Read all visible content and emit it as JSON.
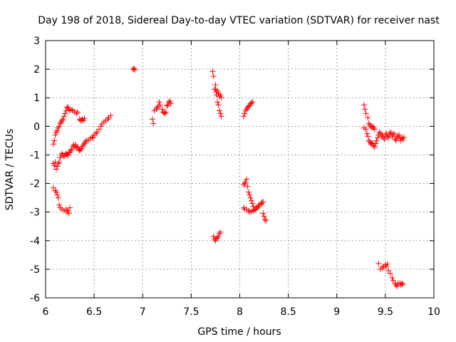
{
  "chart_data": {
    "type": "scatter",
    "title": "Day 198 of 2018, Sidereal Day-to-day VTEC variation (SDTVAR) for receiver nast",
    "xlabel": "GPS time / hours",
    "ylabel": "SDTVAR / TECUs",
    "xlim": [
      6,
      10
    ],
    "ylim": [
      -6,
      3
    ],
    "xticks": [
      "6",
      "6.5",
      "7",
      "7.5",
      "8",
      "8.5",
      "9",
      "9.5",
      "10"
    ],
    "yticks": [
      "-6",
      "-5",
      "-4",
      "-3",
      "-2",
      "-1",
      "0",
      "1",
      "2",
      "3"
    ],
    "grid": true,
    "marker": "+",
    "colors": {
      "marker": "#ff0000",
      "grid": "#a0a0a0",
      "axis": "#000000"
    },
    "series": [
      {
        "name": "SDTVAR",
        "points": [
          [
            6.08,
            -0.62
          ],
          [
            6.09,
            -0.5
          ],
          [
            6.1,
            -0.3
          ],
          [
            6.11,
            -0.2
          ],
          [
            6.12,
            -0.15
          ],
          [
            6.13,
            -0.05
          ],
          [
            6.14,
            0.0
          ],
          [
            6.15,
            0.1
          ],
          [
            6.16,
            0.15
          ],
          [
            6.17,
            0.2
          ],
          [
            6.18,
            0.25
          ],
          [
            6.19,
            0.35
          ],
          [
            6.2,
            0.45
          ],
          [
            6.21,
            0.55
          ],
          [
            6.22,
            0.65
          ],
          [
            6.23,
            0.68
          ],
          [
            6.24,
            0.6
          ],
          [
            6.25,
            0.55
          ],
          [
            6.27,
            0.58
          ],
          [
            6.28,
            0.55
          ],
          [
            6.3,
            0.5
          ],
          [
            6.32,
            0.45
          ],
          [
            6.33,
            0.5
          ],
          [
            6.35,
            0.25
          ],
          [
            6.36,
            0.2
          ],
          [
            6.37,
            0.22
          ],
          [
            6.38,
            0.25
          ],
          [
            6.39,
            0.2
          ],
          [
            6.4,
            0.28
          ],
          [
            6.08,
            -1.3
          ],
          [
            6.09,
            -1.38
          ],
          [
            6.1,
            -1.25
          ],
          [
            6.11,
            -1.5
          ],
          [
            6.12,
            -1.4
          ],
          [
            6.13,
            -1.3
          ],
          [
            6.14,
            -1.25
          ],
          [
            6.15,
            -1.1
          ],
          [
            6.16,
            -1.0
          ],
          [
            6.17,
            -0.95
          ],
          [
            6.18,
            -1.0
          ],
          [
            6.19,
            -1.05
          ],
          [
            6.2,
            -1.0
          ],
          [
            6.21,
            -0.95
          ],
          [
            6.22,
            -0.98
          ],
          [
            6.23,
            -1.02
          ],
          [
            6.24,
            -0.92
          ],
          [
            6.25,
            -0.9
          ],
          [
            6.26,
            -0.85
          ],
          [
            6.27,
            -0.8
          ],
          [
            6.28,
            -0.7
          ],
          [
            6.29,
            -0.65
          ],
          [
            6.3,
            -0.7
          ],
          [
            6.31,
            -0.65
          ],
          [
            6.32,
            -0.75
          ],
          [
            6.33,
            -0.72
          ],
          [
            6.34,
            -0.8
          ],
          [
            6.35,
            -0.85
          ],
          [
            6.36,
            -0.82
          ],
          [
            6.37,
            -0.78
          ],
          [
            6.38,
            -0.7
          ],
          [
            6.39,
            -0.65
          ],
          [
            6.4,
            -0.6
          ],
          [
            6.41,
            -0.55
          ],
          [
            6.42,
            -0.5
          ],
          [
            6.44,
            -0.48
          ],
          [
            6.46,
            -0.42
          ],
          [
            6.48,
            -0.38
          ],
          [
            6.49,
            -0.4
          ],
          [
            6.5,
            -0.3
          ],
          [
            6.52,
            -0.25
          ],
          [
            6.53,
            -0.2
          ],
          [
            6.55,
            -0.1
          ],
          [
            6.57,
            0.0
          ],
          [
            6.58,
            0.08
          ],
          [
            6.6,
            0.15
          ],
          [
            6.62,
            0.2
          ],
          [
            6.64,
            0.25
          ],
          [
            6.65,
            0.3
          ],
          [
            6.67,
            0.38
          ],
          [
            6.08,
            -2.15
          ],
          [
            6.1,
            -2.25
          ],
          [
            6.11,
            -2.3
          ],
          [
            6.12,
            -2.4
          ],
          [
            6.13,
            -2.5
          ],
          [
            6.14,
            -2.75
          ],
          [
            6.15,
            -2.85
          ],
          [
            6.17,
            -2.9
          ],
          [
            6.19,
            -2.95
          ],
          [
            6.21,
            -2.9
          ],
          [
            6.22,
            -3.0
          ],
          [
            6.23,
            -2.95
          ],
          [
            6.24,
            -3.05
          ],
          [
            6.25,
            -2.85
          ],
          [
            6.9,
            2.0
          ],
          [
            6.91,
            2.02
          ],
          [
            6.92,
            1.98
          ],
          [
            7.1,
            0.25
          ],
          [
            7.11,
            0.1
          ],
          [
            7.12,
            0.55
          ],
          [
            7.14,
            0.6
          ],
          [
            7.15,
            0.65
          ],
          [
            7.16,
            0.7
          ],
          [
            7.17,
            0.85
          ],
          [
            7.18,
            0.75
          ],
          [
            7.2,
            0.6
          ],
          [
            7.21,
            0.5
          ],
          [
            7.22,
            0.48
          ],
          [
            7.23,
            0.45
          ],
          [
            7.24,
            0.5
          ],
          [
            7.25,
            0.72
          ],
          [
            7.26,
            0.75
          ],
          [
            7.27,
            0.85
          ],
          [
            7.28,
            0.88
          ],
          [
            7.29,
            0.8
          ],
          [
            7.72,
            1.92
          ],
          [
            7.73,
            1.75
          ],
          [
            7.74,
            1.3
          ],
          [
            7.75,
            1.45
          ],
          [
            7.76,
            1.2
          ],
          [
            7.77,
            1.25
          ],
          [
            7.78,
            1.15
          ],
          [
            7.79,
            1.05
          ],
          [
            7.8,
            1.1
          ],
          [
            7.81,
            1.0
          ],
          [
            7.75,
            1.3
          ],
          [
            7.76,
            1.1
          ],
          [
            7.77,
            0.85
          ],
          [
            7.78,
            0.75
          ],
          [
            7.79,
            0.55
          ],
          [
            7.8,
            0.45
          ],
          [
            7.81,
            0.35
          ],
          [
            7.73,
            -3.85
          ],
          [
            7.74,
            -3.95
          ],
          [
            7.75,
            -4.0
          ],
          [
            7.76,
            -3.92
          ],
          [
            7.77,
            -3.9
          ],
          [
            7.78,
            -3.85
          ],
          [
            7.79,
            -3.75
          ],
          [
            7.8,
            -3.7
          ],
          [
            8.04,
            0.35
          ],
          [
            8.05,
            0.45
          ],
          [
            8.06,
            0.55
          ],
          [
            8.07,
            0.6
          ],
          [
            8.08,
            0.65
          ],
          [
            8.09,
            0.7
          ],
          [
            8.1,
            0.72
          ],
          [
            8.11,
            0.78
          ],
          [
            8.12,
            0.82
          ],
          [
            8.13,
            0.86
          ],
          [
            8.04,
            -2.05
          ],
          [
            8.05,
            -2.0
          ],
          [
            8.06,
            -1.95
          ],
          [
            8.07,
            -1.85
          ],
          [
            8.08,
            -2.1
          ],
          [
            8.09,
            -2.3
          ],
          [
            8.1,
            -2.4
          ],
          [
            8.11,
            -2.5
          ],
          [
            8.12,
            -2.6
          ],
          [
            8.13,
            -2.7
          ],
          [
            8.14,
            -2.8
          ],
          [
            8.15,
            -2.9
          ],
          [
            8.17,
            -2.85
          ],
          [
            8.19,
            -2.8
          ],
          [
            8.2,
            -2.75
          ],
          [
            8.22,
            -2.7
          ],
          [
            8.23,
            -2.65
          ],
          [
            8.24,
            -3.05
          ],
          [
            8.25,
            -3.15
          ],
          [
            8.26,
            -3.25
          ],
          [
            8.27,
            -3.3
          ],
          [
            8.04,
            -2.85
          ],
          [
            8.05,
            -2.9
          ],
          [
            8.07,
            -2.9
          ],
          [
            8.09,
            -2.95
          ],
          [
            8.1,
            -3.0
          ],
          [
            8.12,
            -2.98
          ],
          [
            8.14,
            -2.95
          ],
          [
            8.16,
            -2.92
          ],
          [
            8.18,
            -2.85
          ],
          [
            8.2,
            -2.8
          ],
          [
            8.22,
            -2.72
          ],
          [
            8.24,
            -2.65
          ],
          [
            9.28,
            0.75
          ],
          [
            9.29,
            0.6
          ],
          [
            9.3,
            0.45
          ],
          [
            9.32,
            0.3
          ],
          [
            9.33,
            0.1
          ],
          [
            9.34,
            0.05
          ],
          [
            9.35,
            0.0
          ],
          [
            9.36,
            -0.05
          ],
          [
            9.37,
            0.0
          ],
          [
            9.38,
            -0.05
          ],
          [
            9.39,
            -0.1
          ],
          [
            9.28,
            -0.05
          ],
          [
            9.3,
            -0.1
          ],
          [
            9.31,
            -0.25
          ],
          [
            9.32,
            -0.35
          ],
          [
            9.33,
            -0.5
          ],
          [
            9.34,
            -0.55
          ],
          [
            9.35,
            -0.62
          ],
          [
            9.36,
            -0.58
          ],
          [
            9.37,
            -0.6
          ],
          [
            9.38,
            -0.68
          ],
          [
            9.39,
            -0.72
          ],
          [
            9.4,
            -0.6
          ],
          [
            9.41,
            -0.5
          ],
          [
            9.42,
            -0.4
          ],
          [
            9.43,
            -0.3
          ],
          [
            9.44,
            -0.2
          ],
          [
            9.45,
            -0.25
          ],
          [
            9.46,
            -0.35
          ],
          [
            9.47,
            -0.3
          ],
          [
            9.48,
            -0.4
          ],
          [
            9.49,
            -0.45
          ],
          [
            9.5,
            -0.3
          ],
          [
            9.51,
            -0.25
          ],
          [
            9.52,
            -0.35
          ],
          [
            9.53,
            -0.4
          ],
          [
            9.54,
            -0.3
          ],
          [
            9.55,
            -0.2
          ],
          [
            9.56,
            -0.25
          ],
          [
            9.57,
            -0.35
          ],
          [
            9.58,
            -0.3
          ],
          [
            9.59,
            -0.25
          ],
          [
            9.6,
            -0.45
          ],
          [
            9.61,
            -0.5
          ],
          [
            9.62,
            -0.4
          ],
          [
            9.63,
            -0.35
          ],
          [
            9.64,
            -0.3
          ],
          [
            9.65,
            -0.42
          ],
          [
            9.66,
            -0.5
          ],
          [
            9.67,
            -0.4
          ],
          [
            9.68,
            -0.45
          ],
          [
            9.69,
            -0.38
          ],
          [
            9.43,
            -4.8
          ],
          [
            9.45,
            -5.0
          ],
          [
            9.47,
            -4.95
          ],
          [
            9.48,
            -4.9
          ],
          [
            9.5,
            -4.85
          ],
          [
            9.51,
            -4.9
          ],
          [
            9.52,
            -4.82
          ],
          [
            9.53,
            -5.05
          ],
          [
            9.55,
            -5.15
          ],
          [
            9.57,
            -5.3
          ],
          [
            9.58,
            -5.4
          ],
          [
            9.6,
            -5.5
          ],
          [
            9.61,
            -5.55
          ],
          [
            9.62,
            -5.6
          ],
          [
            9.63,
            -5.5
          ],
          [
            9.65,
            -5.48
          ],
          [
            9.66,
            -5.55
          ],
          [
            9.67,
            -5.5
          ],
          [
            9.68,
            -5.52
          ]
        ]
      }
    ]
  }
}
